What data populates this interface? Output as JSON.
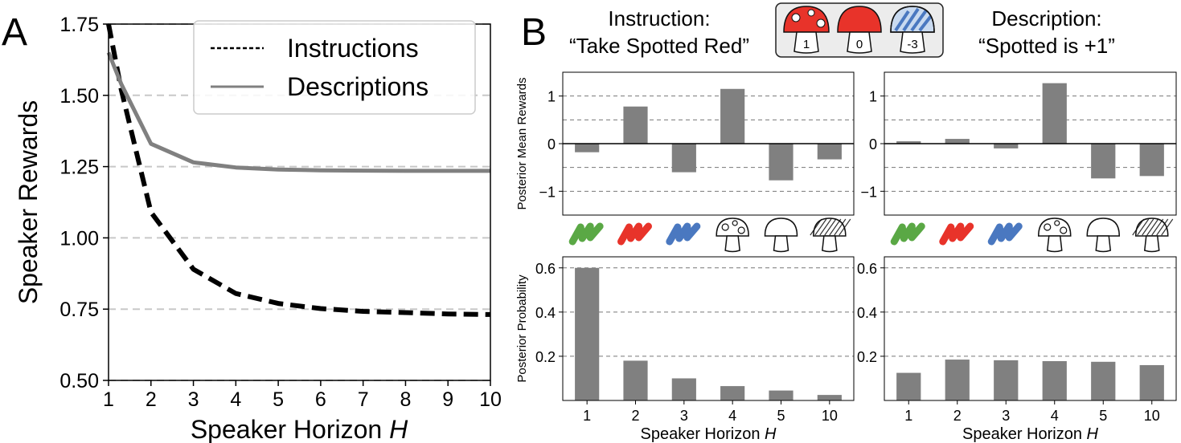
{
  "panel_labels": {
    "a": "A",
    "b": "B"
  },
  "header": {
    "instruction_line1": "Instruction:",
    "instruction_line2": "“Take Spotted Red”",
    "description_line1": "Description:",
    "description_line2": "“Spotted is +1”",
    "mushroom_rewards": [
      "1",
      "0",
      "-3"
    ]
  },
  "colors": {
    "instructions_line": "#000000",
    "descriptions_line": "#808080",
    "bar": "#808080",
    "grid": "#c8c8c8",
    "green_icon": "#5aa845",
    "red_icon": "#e8332a",
    "blue_icon": "#4a78c0",
    "mushroom_red": "#e8332a",
    "mushroom_blue": "#4a78c0",
    "box_fill": "#ececec"
  },
  "icons": [
    "green-scribble-icon",
    "red-scribble-icon",
    "blue-scribble-icon",
    "spotted-mushroom-icon",
    "plain-mushroom-icon",
    "striped-mushroom-icon"
  ],
  "chart_data": [
    {
      "id": "A",
      "type": "line",
      "xlabel": "Speaker Horizon ",
      "xlabel_italic": "H",
      "ylabel": "Speaker Rewards",
      "xlim": [
        1,
        10
      ],
      "ylim": [
        0.5,
        1.75
      ],
      "xticks": [
        "1",
        "2",
        "3",
        "4",
        "5",
        "6",
        "7",
        "8",
        "9",
        "10"
      ],
      "yticks": [
        "0.50",
        "0.75",
        "1.00",
        "1.25",
        "1.50",
        "1.75"
      ],
      "grid": "horizontal dashed",
      "legend_position": "top-right",
      "x": [
        1,
        1.3,
        2,
        3,
        4,
        5,
        6,
        7,
        8,
        9,
        10
      ],
      "series": [
        {
          "name": "Instructions",
          "style": "dashed",
          "values": [
            1.75,
            1.52,
            1.09,
            0.89,
            0.805,
            0.77,
            0.752,
            0.742,
            0.738,
            0.733,
            0.731
          ]
        },
        {
          "name": "Descriptions",
          "style": "solid",
          "values": [
            1.65,
            1.54,
            1.33,
            1.265,
            1.247,
            1.24,
            1.237,
            1.236,
            1.235,
            1.235,
            1.235
          ]
        }
      ]
    },
    {
      "id": "B-top-left",
      "type": "bar",
      "ylabel": "Posterior Mean Rewards",
      "categories": [
        "green",
        "red",
        "blue",
        "spotted",
        "plain",
        "striped"
      ],
      "values": [
        -0.18,
        0.78,
        -0.6,
        1.15,
        -0.77,
        -0.33
      ],
      "ylim": [
        -1.5,
        1.5
      ],
      "yticks": [
        "1",
        "0",
        "−1"
      ]
    },
    {
      "id": "B-top-right",
      "type": "bar",
      "categories": [
        "green",
        "red",
        "blue",
        "spotted",
        "plain",
        "striped"
      ],
      "values": [
        0.05,
        0.1,
        -0.1,
        1.27,
        -0.73,
        -0.68
      ],
      "ylim": [
        -1.5,
        1.5
      ],
      "yticks": [
        "1",
        "0",
        "−1"
      ]
    },
    {
      "id": "B-bottom-left",
      "type": "bar",
      "xlabel": "Speaker Horizon ",
      "xlabel_italic": "H",
      "ylabel": "Posterior Probability",
      "categories": [
        "1",
        "2",
        "3",
        "4",
        "5",
        "10"
      ],
      "values": [
        0.6,
        0.18,
        0.1,
        0.065,
        0.045,
        0.025
      ],
      "ylim": [
        0,
        0.65
      ],
      "yticks": [
        "0.6",
        "0.4",
        "0.2"
      ]
    },
    {
      "id": "B-bottom-right",
      "type": "bar",
      "xlabel": "Speaker Horizon ",
      "xlabel_italic": "H",
      "categories": [
        "1",
        "2",
        "3",
        "4",
        "5",
        "10"
      ],
      "values": [
        0.125,
        0.185,
        0.182,
        0.178,
        0.175,
        0.16
      ],
      "ylim": [
        0,
        0.65
      ],
      "yticks": [
        "0.6",
        "0.4",
        "0.2"
      ]
    }
  ]
}
